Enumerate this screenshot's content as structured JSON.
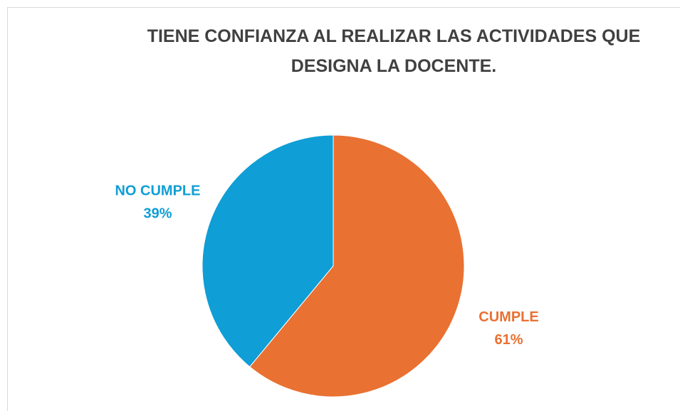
{
  "chart_data": {
    "type": "pie",
    "title": "TIENE CONFIANZA AL REALIZAR LAS ACTIVIDADES QUE DESIGNA LA DOCENTE.",
    "categories": [
      "CUMPLE",
      "NO CUMPLE"
    ],
    "values": [
      61,
      39
    ],
    "value_labels": [
      "61%",
      "39%"
    ],
    "colors": [
      "#E97132",
      "#0F9ED5"
    ]
  }
}
